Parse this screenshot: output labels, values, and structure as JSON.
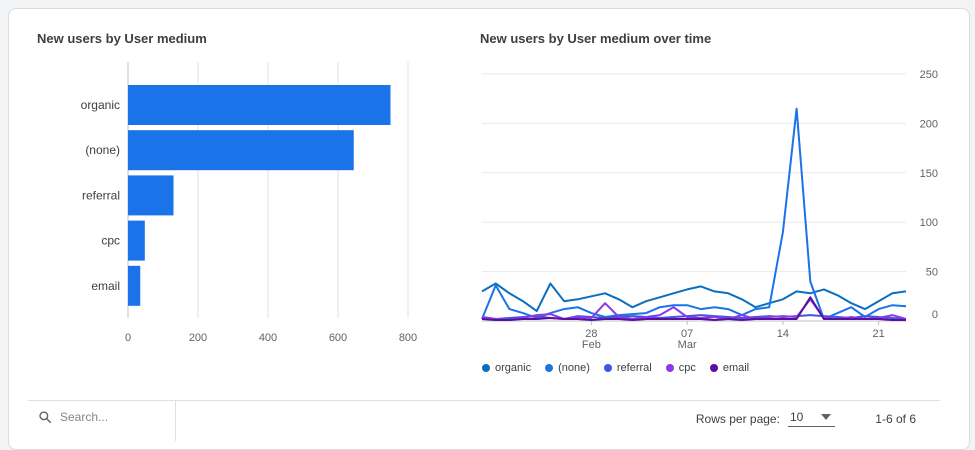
{
  "bar_card": {
    "title": "New users by User medium"
  },
  "line_card": {
    "title": "New users by User medium over time"
  },
  "colors": {
    "organic": "#1a73e8",
    "none": "#1a73e8",
    "referral": "#4355e0",
    "cpc": "#8a3ae8",
    "email": "#5a0fa0"
  },
  "chart_data": [
    {
      "type": "bar",
      "orientation": "horizontal",
      "title": "New users by User medium",
      "categories": [
        "organic",
        "(none)",
        "referral",
        "cpc",
        "email"
      ],
      "values": [
        750,
        645,
        130,
        48,
        35
      ],
      "xlim": [
        0,
        800
      ],
      "xticks": [
        "0",
        "200",
        "400",
        "600",
        "800"
      ],
      "grid": true
    },
    {
      "type": "line",
      "title": "New users by User medium over time",
      "ylim": [
        0,
        250
      ],
      "yticks": [
        "250",
        "200",
        "150",
        "100",
        "50",
        "0"
      ],
      "xtick_labels": [
        {
          "day": "28",
          "month": "Feb"
        },
        {
          "day": "07",
          "month": "Mar"
        },
        {
          "day": "14",
          "month": ""
        },
        {
          "day": "21",
          "month": ""
        }
      ],
      "x": [
        "Feb 20",
        "Feb 21",
        "Feb 22",
        "Feb 23",
        "Feb 24",
        "Feb 25",
        "Feb 26",
        "Feb 27",
        "Feb 28",
        "Mar 01",
        "Mar 02",
        "Mar 03",
        "Mar 04",
        "Mar 05",
        "Mar 06",
        "Mar 07",
        "Mar 08",
        "Mar 09",
        "Mar 10",
        "Mar 11",
        "Mar 12",
        "Mar 13",
        "Mar 14",
        "Mar 15",
        "Mar 16",
        "Mar 17",
        "Mar 18",
        "Mar 19",
        "Mar 20",
        "Mar 21",
        "Mar 22",
        "Mar 23"
      ],
      "legend_position": "bottom-left",
      "series": [
        {
          "name": "organic",
          "color": "#0b6fbf",
          "values": [
            30,
            38,
            28,
            20,
            10,
            38,
            20,
            22,
            25,
            28,
            22,
            14,
            20,
            24,
            28,
            32,
            35,
            30,
            28,
            22,
            14,
            18,
            22,
            30,
            28,
            32,
            26,
            18,
            12,
            20,
            28,
            30
          ]
        },
        {
          "name": "(none)",
          "color": "#1a73e8",
          "values": [
            2,
            36,
            12,
            8,
            3,
            8,
            12,
            14,
            8,
            4,
            6,
            7,
            8,
            14,
            16,
            16,
            12,
            14,
            12,
            6,
            12,
            14,
            90,
            215,
            40,
            2,
            8,
            14,
            4,
            12,
            16,
            15
          ]
        },
        {
          "name": "referral",
          "color": "#4355e0",
          "values": [
            4,
            2,
            3,
            4,
            5,
            3,
            2,
            5,
            4,
            3,
            4,
            5,
            4,
            3,
            4,
            5,
            6,
            5,
            4,
            3,
            4,
            5,
            4,
            5,
            6,
            5,
            4,
            3,
            5,
            4,
            3,
            2
          ]
        },
        {
          "name": "cpc",
          "color": "#8a3ae8",
          "values": [
            4,
            2,
            1,
            3,
            6,
            7,
            2,
            4,
            3,
            18,
            4,
            2,
            4,
            6,
            14,
            4,
            3,
            4,
            2,
            6,
            2,
            4,
            5,
            4,
            22,
            3,
            2,
            4,
            2,
            3,
            6,
            2
          ]
        },
        {
          "name": "email",
          "color": "#5a0fa0",
          "values": [
            2,
            1,
            1,
            2,
            2,
            3,
            2,
            2,
            1,
            2,
            2,
            1,
            2,
            2,
            2,
            2,
            2,
            1,
            2,
            1,
            2,
            2,
            2,
            2,
            24,
            2,
            2,
            2,
            2,
            2,
            1,
            1
          ]
        }
      ]
    }
  ],
  "legend": [
    {
      "label": "organic",
      "color": "#0b6fbf"
    },
    {
      "label": "(none)",
      "color": "#1a73e8"
    },
    {
      "label": "referral",
      "color": "#4355e0"
    },
    {
      "label": "cpc",
      "color": "#8a3ae8"
    },
    {
      "label": "email",
      "color": "#5a0fa0"
    }
  ],
  "footer": {
    "search_placeholder": "Search...",
    "rows_per_page_label": "Rows per page:",
    "rows_per_page_value": "10",
    "pagination": "1-6 of 6"
  }
}
